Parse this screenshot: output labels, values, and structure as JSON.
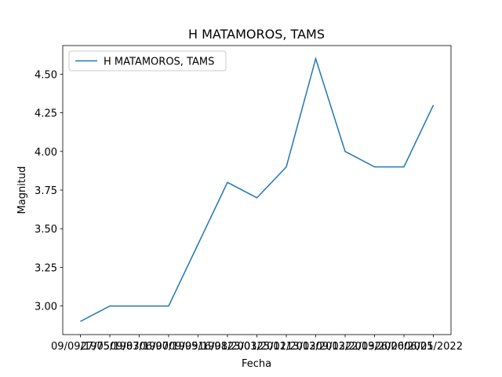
{
  "chart_data": {
    "type": "line",
    "title": "H MATAMOROS, TAMS",
    "xlabel": "Fecha",
    "ylabel": "Magnitud",
    "categories": [
      "09/09/1975",
      "27/05/1983",
      "09/07/1990",
      "06/07/1995",
      "09/09/1998",
      "16/01/2003",
      "23/01/2011",
      "25/02/2012",
      "13/03/2013",
      "09/02/2019",
      "22/03/2020",
      "26/06/2021",
      "06/05/2022"
    ],
    "series": [
      {
        "name": "H MATAMOROS, TAMS",
        "color": "#1f77b4",
        "values": [
          2.9,
          3.0,
          3.0,
          3.0,
          3.4,
          3.8,
          3.7,
          3.9,
          4.6,
          4.0,
          3.9,
          3.9,
          4.3
        ]
      }
    ],
    "ylim": [
      2.815,
      4.685
    ],
    "yticks": [
      {
        "value": 3.0,
        "label": "3.00"
      },
      {
        "value": 3.25,
        "label": "3.25"
      },
      {
        "value": 3.5,
        "label": "3.50"
      },
      {
        "value": 3.75,
        "label": "3.75"
      },
      {
        "value": 4.0,
        "label": "4.00"
      },
      {
        "value": 4.25,
        "label": "4.25"
      },
      {
        "value": 4.5,
        "label": "4.50"
      }
    ],
    "legend": "upper left"
  }
}
